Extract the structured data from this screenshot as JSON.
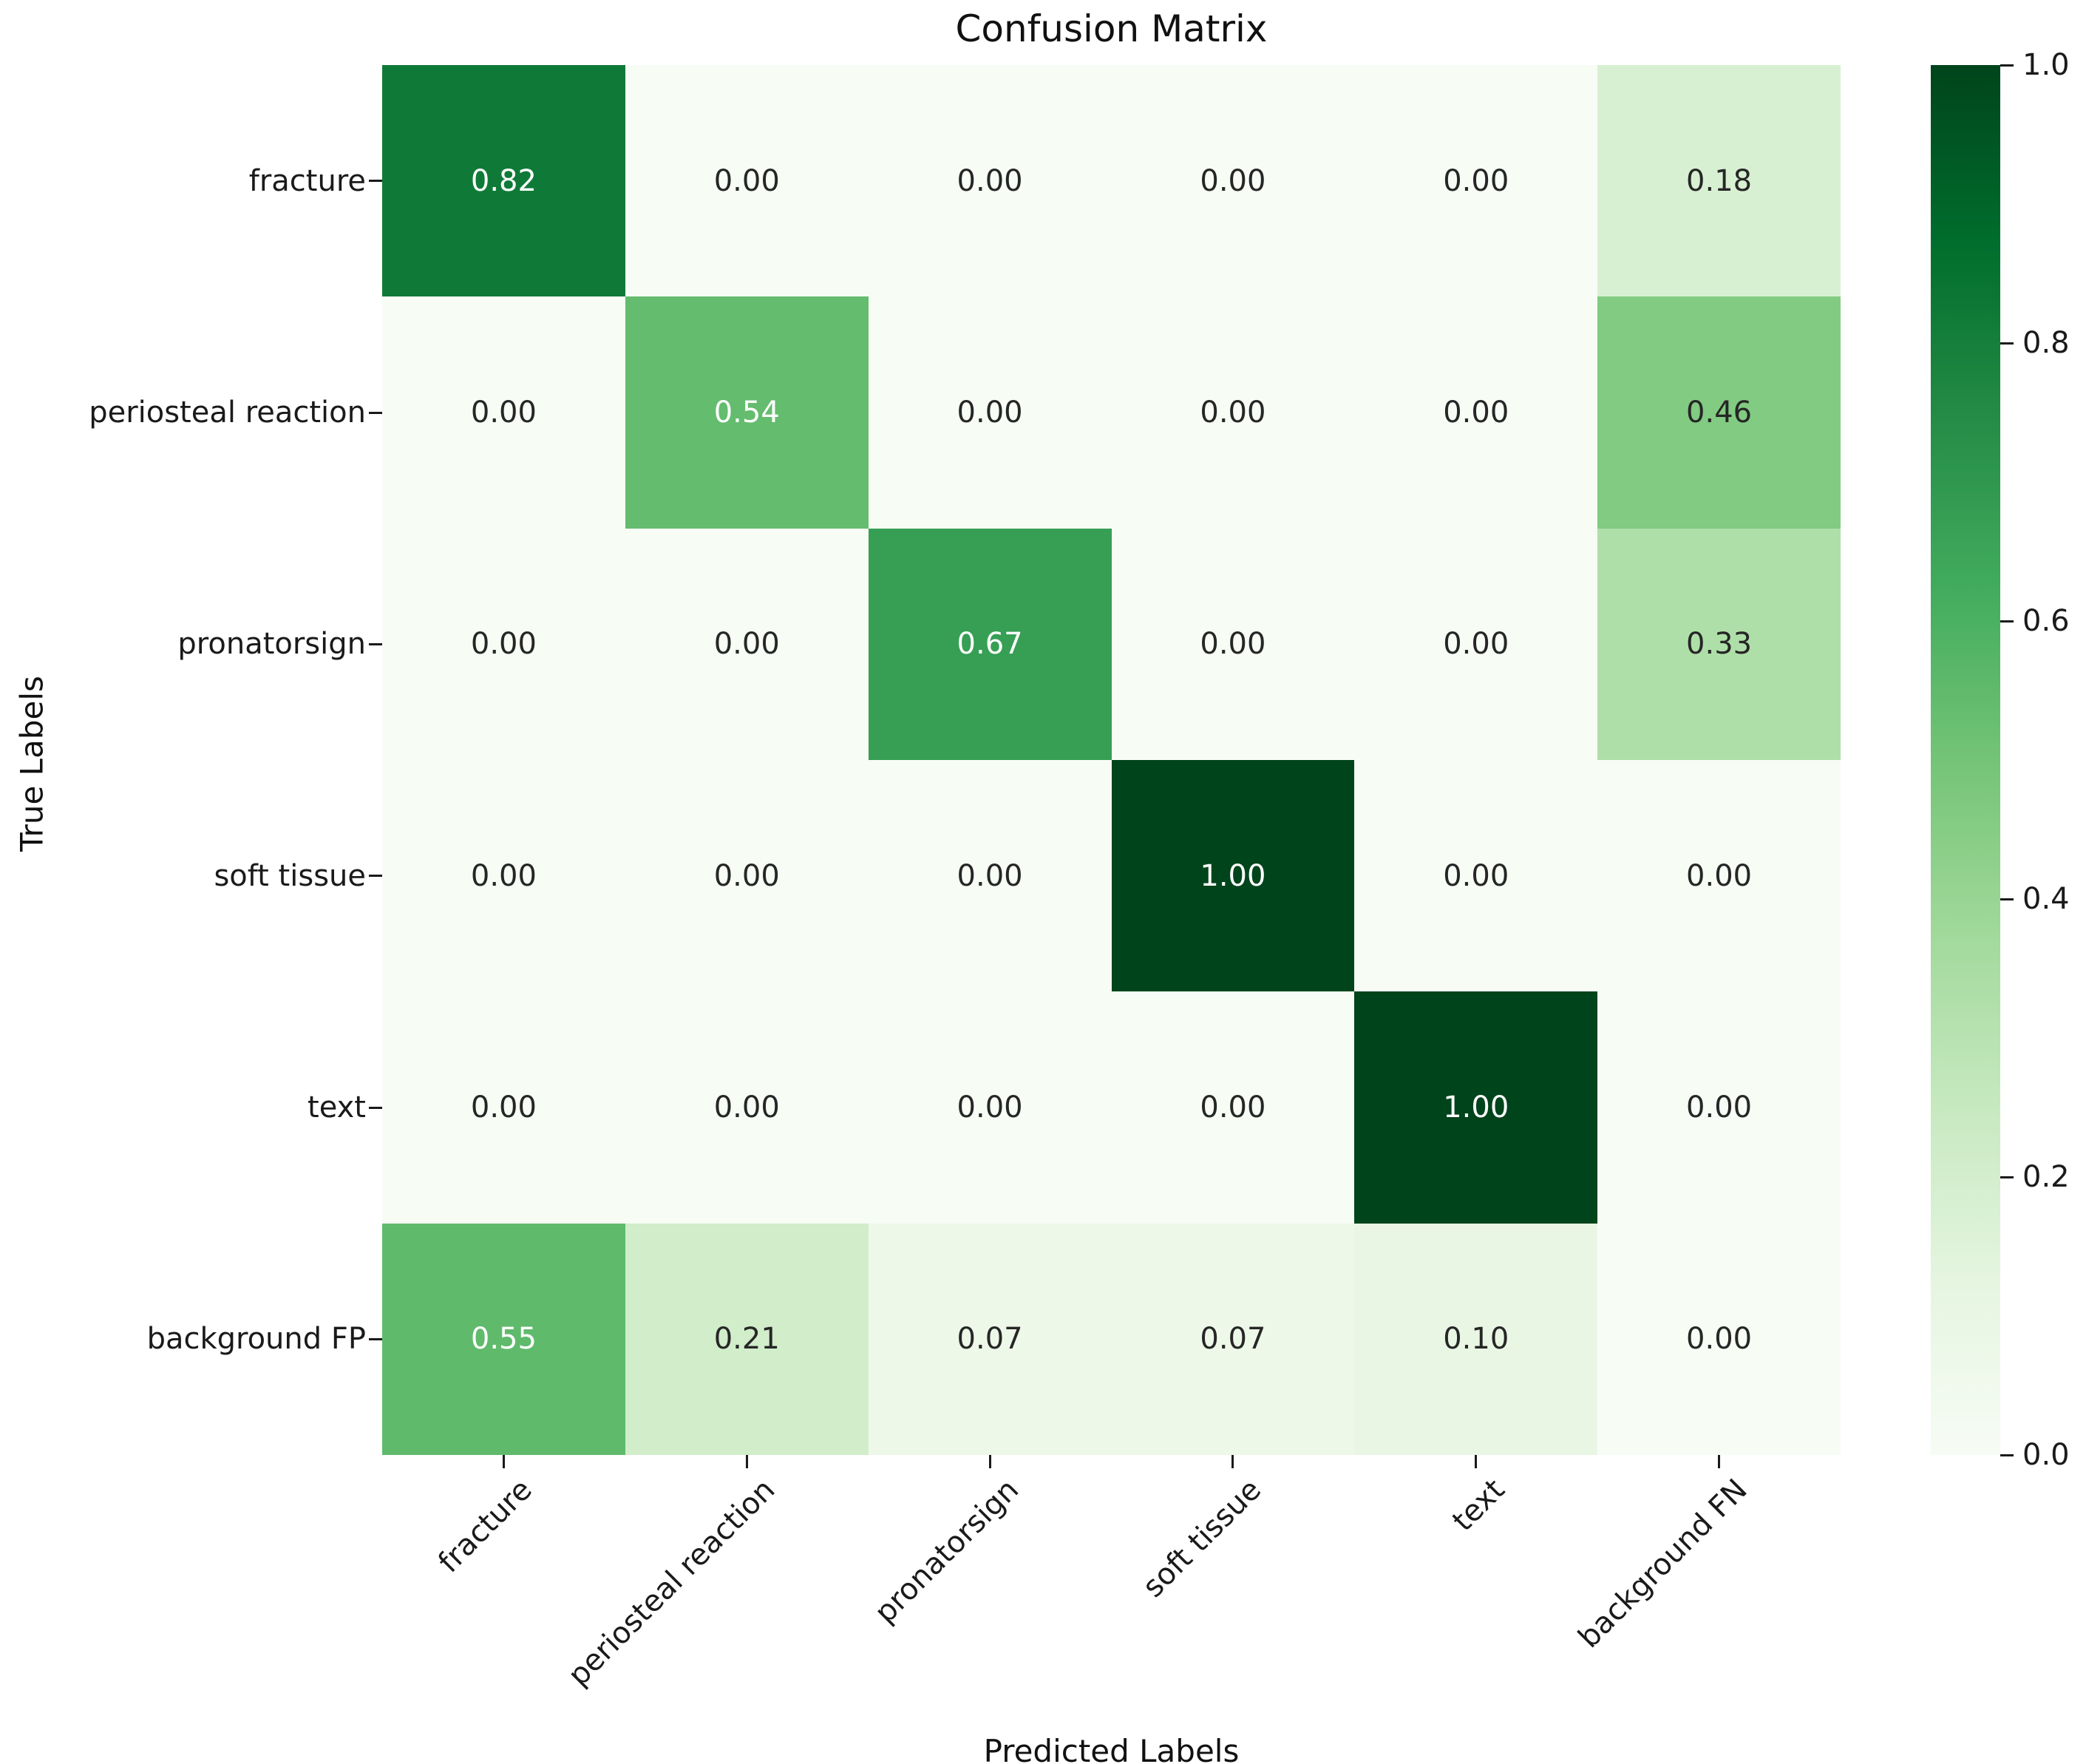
{
  "chart_data": {
    "type": "heatmap",
    "title": "Confusion Matrix",
    "xlabel": "Predicted Labels",
    "ylabel": "True Labels",
    "x_categories": [
      "fracture",
      "periosteal reaction",
      "pronatorsign",
      "soft tissue",
      "text",
      "background FN"
    ],
    "y_categories": [
      "fracture",
      "periosteal reaction",
      "pronatorsign",
      "soft tissue",
      "text",
      "background FP"
    ],
    "values": [
      [
        0.82,
        0.0,
        0.0,
        0.0,
        0.0,
        0.18
      ],
      [
        0.0,
        0.54,
        0.0,
        0.0,
        0.0,
        0.46
      ],
      [
        0.0,
        0.0,
        0.67,
        0.0,
        0.0,
        0.33
      ],
      [
        0.0,
        0.0,
        0.0,
        1.0,
        0.0,
        0.0
      ],
      [
        0.0,
        0.0,
        0.0,
        0.0,
        1.0,
        0.0
      ],
      [
        0.55,
        0.21,
        0.07,
        0.07,
        0.1,
        0.0
      ]
    ],
    "value_decimals": 2,
    "vmin": 0.0,
    "vmax": 1.0,
    "grid": false,
    "legend_position": "right-colorbar",
    "colormap": {
      "name": "Greens",
      "anchors": [
        {
          "pos": 0.0,
          "color": "#f7fcf5"
        },
        {
          "pos": 0.125,
          "color": "#e5f5e0"
        },
        {
          "pos": 0.25,
          "color": "#c7e9c0"
        },
        {
          "pos": 0.375,
          "color": "#a1d99b"
        },
        {
          "pos": 0.5,
          "color": "#74c476"
        },
        {
          "pos": 0.625,
          "color": "#41ab5d"
        },
        {
          "pos": 0.75,
          "color": "#238b45"
        },
        {
          "pos": 0.875,
          "color": "#006d2c"
        },
        {
          "pos": 1.0,
          "color": "#00441b"
        }
      ]
    },
    "annotation_colors": {
      "light_text": "#ffffff",
      "dark_text": "#262626"
    },
    "colorbar_ticks": [
      "0.0",
      "0.2",
      "0.4",
      "0.6",
      "0.8",
      "1.0"
    ]
  }
}
